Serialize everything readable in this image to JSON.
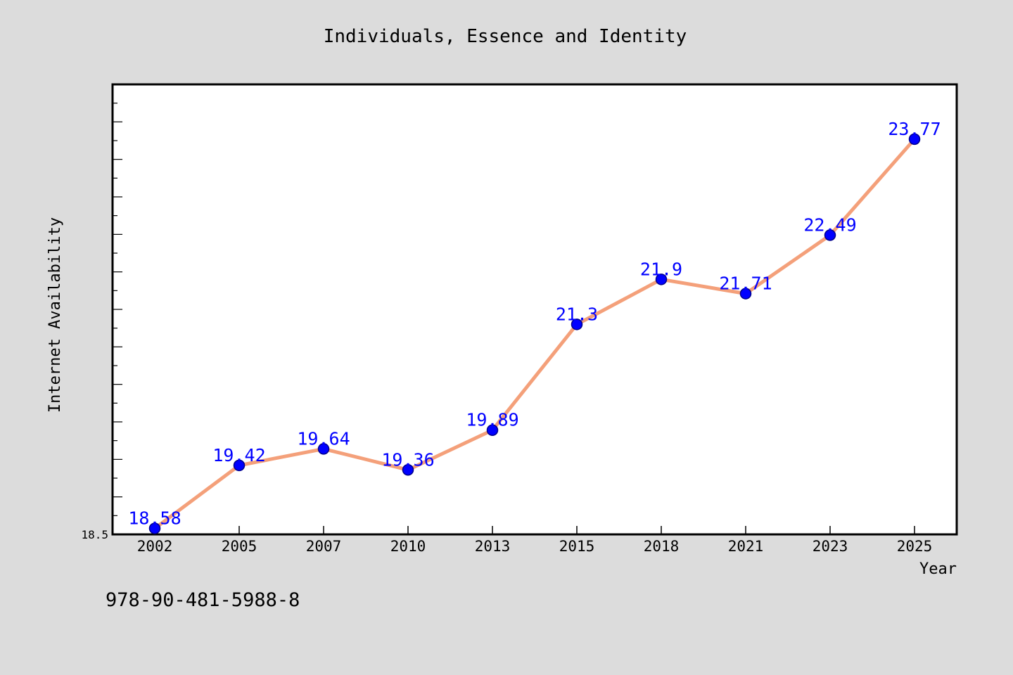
{
  "chart_data": {
    "type": "line",
    "title": "Individuals, Essence and Identity",
    "xlabel": "Year",
    "ylabel": "Internet Availability",
    "categories": [
      "2002",
      "2005",
      "2007",
      "2010",
      "2013",
      "2015",
      "2018",
      "2021",
      "2023",
      "2025"
    ],
    "series": [
      {
        "values": [
          18.58,
          19.42,
          19.64,
          19.36,
          19.89,
          21.3,
          21.9,
          21.71,
          22.49,
          23.77
        ]
      }
    ],
    "data_labels": [
      "18.58",
      "19.42",
      "19.64",
      "19.36",
      "19.89",
      "21.3",
      "21.9",
      "21.71",
      "22.49",
      "23.77"
    ],
    "y_tick_labels": [
      "18.5"
    ],
    "ylim": [
      18.5,
      24.5
    ],
    "grid": false,
    "legend": "none",
    "colors": {
      "line": "#f4a07a",
      "marker": "#0000ff",
      "marker_edge": "#00008b",
      "data_label": "#0000ff",
      "plot_background": "#ffffff",
      "figure_background": "#dcdcdc"
    }
  },
  "footnote": "978-90-481-5988-8"
}
